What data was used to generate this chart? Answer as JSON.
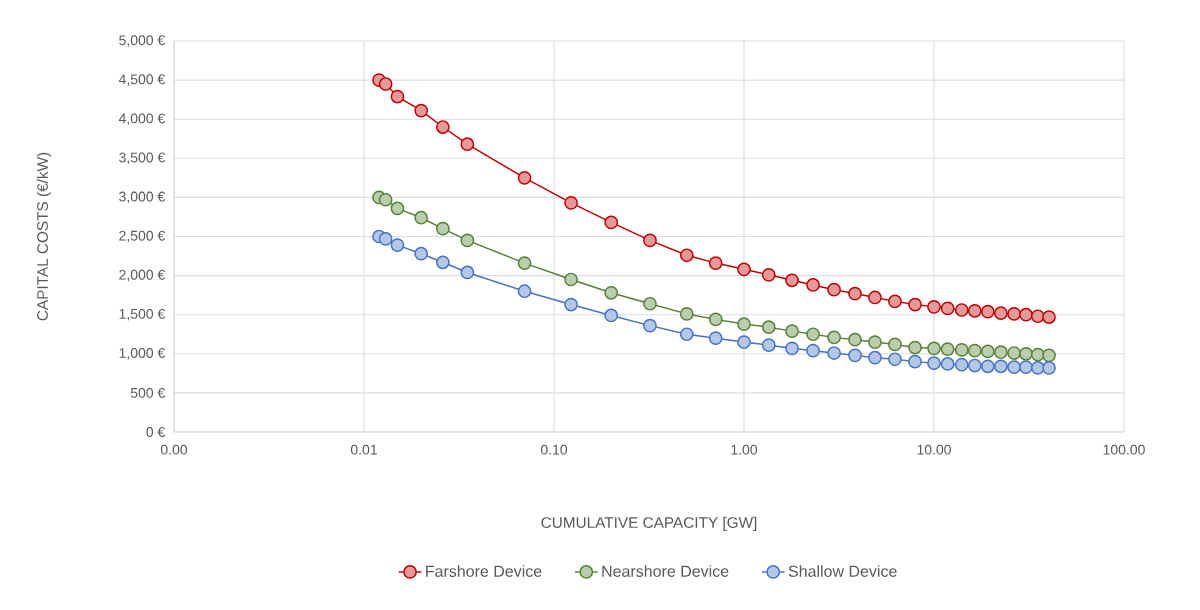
{
  "chart_data": {
    "type": "line",
    "xlabel": "CUMULATIVE CAPACITY [GW]",
    "ylabel": "CAPITAL COSTS (€/kW)",
    "log": "x",
    "grid": true,
    "legend": "bottom",
    "marker": "circle",
    "line_style": "solid",
    "xlim": [
      0.001,
      100
    ],
    "xticks": [
      {
        "value": 0.001,
        "label": "0.00"
      },
      {
        "value": 0.01,
        "label": "0.01"
      },
      {
        "value": 0.1,
        "label": "0.10"
      },
      {
        "value": 1,
        "label": "1.00"
      },
      {
        "value": 10,
        "label": "10.00"
      },
      {
        "value": 100,
        "label": "100.00"
      }
    ],
    "ylim": [
      0,
      5000
    ],
    "yticks": [
      {
        "value": 0,
        "label": "0 €"
      },
      {
        "value": 500,
        "label": "500 €"
      },
      {
        "value": 1000,
        "label": "1,000 €"
      },
      {
        "value": 1500,
        "label": "1,500 €"
      },
      {
        "value": 2000,
        "label": "2,000 €"
      },
      {
        "value": 2500,
        "label": "2,500 €"
      },
      {
        "value": 3000,
        "label": "3,000 €"
      },
      {
        "value": 3500,
        "label": "3,500 €"
      },
      {
        "value": 4000,
        "label": "4,000 €"
      },
      {
        "value": 4500,
        "label": "4,500 €"
      },
      {
        "value": 5000,
        "label": "5,000 €"
      }
    ],
    "x": [
      0.012,
      0.013,
      0.015,
      0.02,
      0.026,
      0.035,
      0.07,
      0.123,
      0.2,
      0.32,
      0.5,
      0.71,
      1.0,
      1.35,
      1.79,
      2.31,
      2.98,
      3.84,
      4.89,
      6.23,
      7.95,
      10,
      11.8,
      14.0,
      16.4,
      19.2,
      22.5,
      26.4,
      30.5,
      35.2,
      40.3
    ],
    "series": [
      {
        "name": "Farshore Device",
        "color": "#c00000",
        "values": [
          4500,
          4450,
          4290,
          4110,
          3900,
          3680,
          3250,
          2930,
          2680,
          2450,
          2260,
          2160,
          2080,
          2010,
          1940,
          1880,
          1820,
          1770,
          1720,
          1670,
          1630,
          1600,
          1580,
          1560,
          1550,
          1540,
          1520,
          1510,
          1500,
          1480,
          1470
        ]
      },
      {
        "name": "Nearshore Device",
        "color": "#548235",
        "values": [
          3000,
          2970,
          2860,
          2740,
          2600,
          2450,
          2160,
          1950,
          1780,
          1640,
          1510,
          1440,
          1380,
          1340,
          1290,
          1250,
          1210,
          1180,
          1150,
          1120,
          1080,
          1070,
          1060,
          1050,
          1040,
          1030,
          1020,
          1010,
          1000,
          990,
          980
        ]
      },
      {
        "name": "Shallow Device",
        "color": "#4472c4",
        "values": [
          2500,
          2470,
          2390,
          2280,
          2170,
          2040,
          1800,
          1630,
          1490,
          1360,
          1250,
          1200,
          1150,
          1110,
          1070,
          1040,
          1010,
          980,
          950,
          930,
          900,
          880,
          870,
          860,
          850,
          840,
          840,
          830,
          830,
          820,
          820
        ]
      }
    ]
  }
}
